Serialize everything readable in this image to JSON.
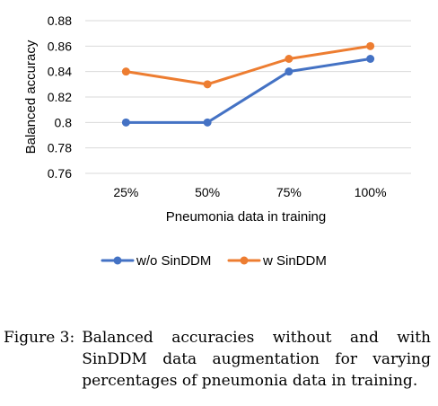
{
  "chart_data": {
    "type": "line",
    "categories": [
      "25%",
      "50%",
      "75%",
      "100%"
    ],
    "series": [
      {
        "name": "w/o SinDDM",
        "values": [
          0.8,
          0.8,
          0.84,
          0.85
        ],
        "color": "#4472C4"
      },
      {
        "name": "w SinDDM",
        "values": [
          0.84,
          0.83,
          0.85,
          0.86
        ],
        "color": "#ED7D31"
      }
    ],
    "title": "",
    "xlabel": "Pneumonia data in training",
    "ylabel": "Balanced accuracy",
    "ylim": [
      0.76,
      0.88
    ],
    "yticks": [
      "0.76",
      "0.78",
      "0.8",
      "0.82",
      "0.84",
      "0.86",
      "0.88"
    ],
    "grid": "horizontal",
    "legend": "bottom"
  },
  "caption": {
    "label": "Figure 3:",
    "text": "Balanced accuracies without and with SinDDM data augmentation for varying percentages of pneumonia data in training."
  }
}
